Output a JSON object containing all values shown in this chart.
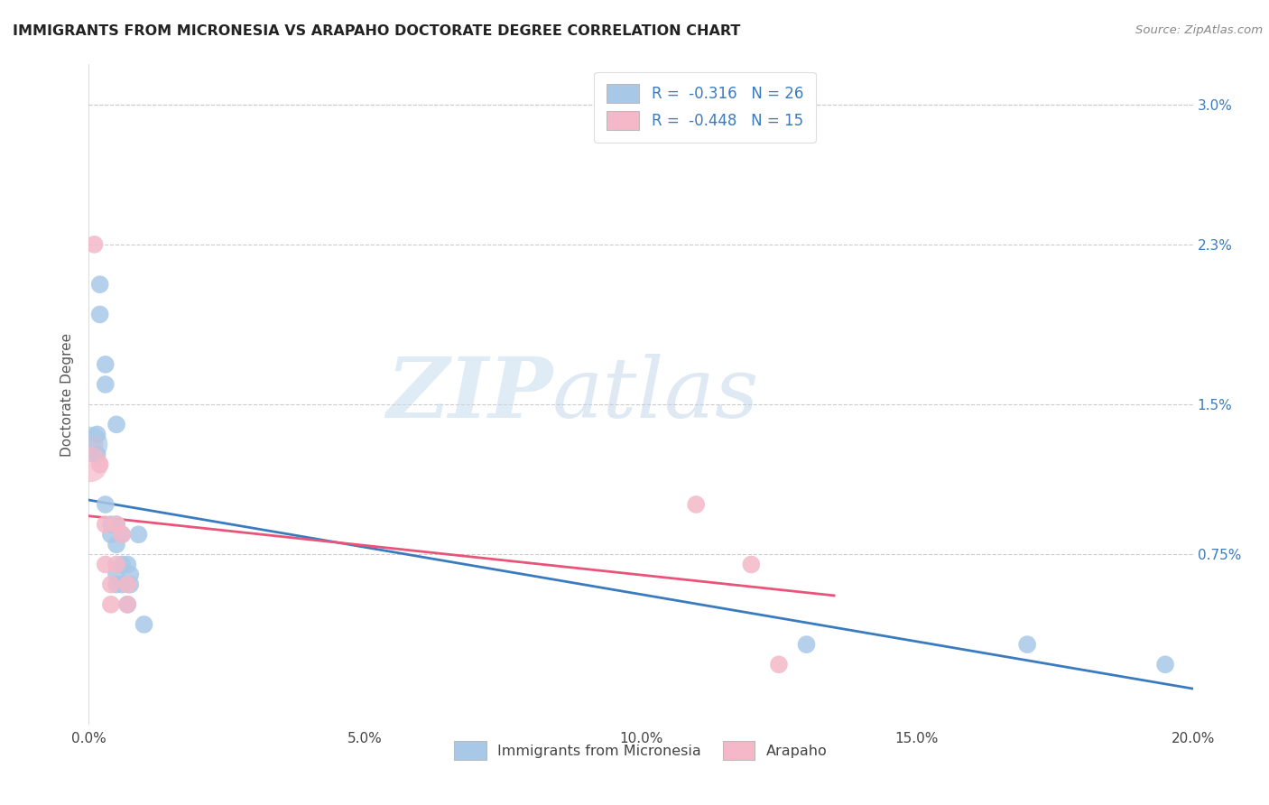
{
  "title": "IMMIGRANTS FROM MICRONESIA VS ARAPAHO DOCTORATE DEGREE CORRELATION CHART",
  "source": "Source: ZipAtlas.com",
  "ylabel_label": "Doctorate Degree",
  "legend_label1": "Immigrants from Micronesia",
  "legend_label2": "Arapaho",
  "r1": "-0.316",
  "n1": "26",
  "r2": "-0.448",
  "n2": "15",
  "color_blue": "#a8c8e8",
  "color_pink": "#f4b8c8",
  "line_color_blue": "#3a7bbf",
  "line_color_pink": "#e8547a",
  "watermark_zip": "ZIP",
  "watermark_atlas": "atlas",
  "blue_x": [
    0.0015,
    0.0015,
    0.002,
    0.002,
    0.003,
    0.003,
    0.003,
    0.004,
    0.004,
    0.005,
    0.005,
    0.005,
    0.005,
    0.005,
    0.006,
    0.006,
    0.006,
    0.007,
    0.007,
    0.0075,
    0.0075,
    0.009,
    0.01,
    0.13,
    0.17,
    0.195
  ],
  "blue_y": [
    0.0135,
    0.0125,
    0.021,
    0.0195,
    0.017,
    0.016,
    0.01,
    0.009,
    0.0085,
    0.014,
    0.009,
    0.008,
    0.0065,
    0.006,
    0.0085,
    0.007,
    0.006,
    0.007,
    0.005,
    0.0065,
    0.006,
    0.0085,
    0.004,
    0.003,
    0.003,
    0.002
  ],
  "pink_x": [
    0.001,
    0.001,
    0.002,
    0.003,
    0.003,
    0.004,
    0.004,
    0.005,
    0.005,
    0.006,
    0.007,
    0.007,
    0.11,
    0.12,
    0.125
  ],
  "pink_y": [
    0.023,
    0.013,
    0.012,
    0.009,
    0.007,
    0.006,
    0.005,
    0.009,
    0.007,
    0.0085,
    0.006,
    0.005,
    0.01,
    0.007,
    0.002
  ],
  "xlim": [
    0.0,
    0.2
  ],
  "ylim": [
    -0.001,
    0.032
  ],
  "ytick_vals": [
    0.0,
    0.0075,
    0.015,
    0.023,
    0.03
  ],
  "ytick_labels": [
    "",
    "0.75%",
    "1.5%",
    "2.3%",
    "3.0%"
  ],
  "xtick_vals": [
    0.0,
    0.05,
    0.1,
    0.15,
    0.2
  ],
  "xtick_labels": [
    "0.0%",
    "5.0%",
    "10.0%",
    "15.0%",
    "20.0%"
  ],
  "blue_line_x_start": 0.0,
  "blue_line_x_end": 0.2,
  "pink_line_x_start": 0.0,
  "pink_line_x_end": 0.135
}
